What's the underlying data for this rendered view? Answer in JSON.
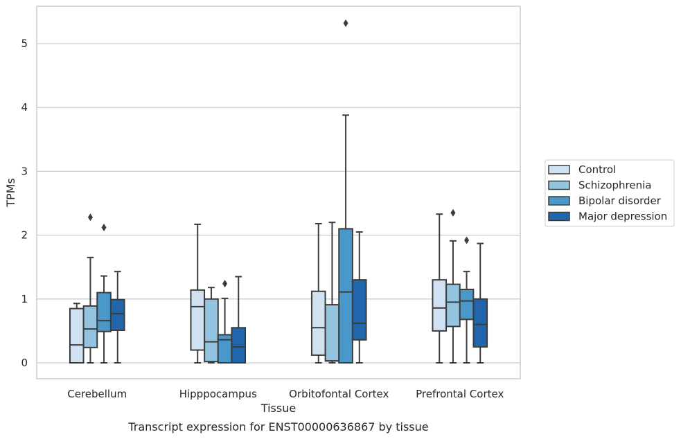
{
  "chart_data": {
    "type": "boxplot",
    "caption": "Transcript expression for ENST00000636867 by tissue",
    "xlabel": "Tissue",
    "ylabel": "TPMs",
    "ylim": [
      -0.26,
      5.83
    ],
    "yticks": [
      0,
      1,
      2,
      3,
      4,
      5
    ],
    "grid": true,
    "legend_position": "right",
    "categories": [
      "Cerebellum",
      "Hipppocampus",
      "Orbitofontal Cortex",
      "Prefrontal Cortex"
    ],
    "series": [
      {
        "name": "Control",
        "color": "#d0e1f2",
        "boxes": [
          {
            "whislo": 0.0,
            "q1": 0.0,
            "med": 0.28,
            "q3": 0.85,
            "whishi": 0.93,
            "fliers": []
          },
          {
            "whislo": 0.0,
            "q1": 0.2,
            "med": 0.88,
            "q3": 1.14,
            "whishi": 2.17,
            "fliers": []
          },
          {
            "whislo": 0.0,
            "q1": 0.12,
            "med": 0.55,
            "q3": 1.12,
            "whishi": 2.18,
            "fliers": []
          },
          {
            "whislo": 0.0,
            "q1": 0.5,
            "med": 0.86,
            "q3": 1.3,
            "whishi": 2.33,
            "fliers": []
          }
        ]
      },
      {
        "name": "Schizophrenia",
        "color": "#94c4df",
        "boxes": [
          {
            "whislo": 0.0,
            "q1": 0.24,
            "med": 0.53,
            "q3": 0.89,
            "whishi": 1.65,
            "fliers": [
              2.28
            ]
          },
          {
            "whislo": 0.0,
            "q1": 0.02,
            "med": 0.33,
            "q3": 1.0,
            "whishi": 1.18,
            "fliers": []
          },
          {
            "whislo": 0.0,
            "q1": 0.03,
            "med": 0.03,
            "q3": 0.91,
            "whishi": 2.2,
            "fliers": []
          },
          {
            "whislo": 0.0,
            "q1": 0.57,
            "med": 0.95,
            "q3": 1.23,
            "whishi": 1.91,
            "fliers": [
              2.35
            ]
          }
        ]
      },
      {
        "name": "Bipolar disorder",
        "color": "#4a98c9",
        "boxes": [
          {
            "whislo": 0.0,
            "q1": 0.49,
            "med": 0.66,
            "q3": 1.1,
            "whishi": 1.36,
            "fliers": [
              2.12
            ]
          },
          {
            "whislo": 0.0,
            "q1": 0.0,
            "med": 0.36,
            "q3": 0.44,
            "whishi": 1.01,
            "fliers": [
              1.24
            ]
          },
          {
            "whislo": 0.0,
            "q1": 0.0,
            "med": 1.11,
            "q3": 2.1,
            "whishi": 3.88,
            "fliers": [
              5.32
            ]
          },
          {
            "whislo": 0.0,
            "q1": 0.68,
            "med": 0.97,
            "q3": 1.15,
            "whishi": 1.43,
            "fliers": [
              1.92
            ]
          }
        ]
      },
      {
        "name": "Major depression",
        "color": "#2166ac",
        "boxes": [
          {
            "whislo": 0.0,
            "q1": 0.51,
            "med": 0.77,
            "q3": 0.99,
            "whishi": 1.43,
            "fliers": []
          },
          {
            "whislo": 0.0,
            "q1": 0.0,
            "med": 0.25,
            "q3": 0.55,
            "whishi": 1.35,
            "fliers": []
          },
          {
            "whislo": 0.0,
            "q1": 0.36,
            "med": 0.62,
            "q3": 1.3,
            "whishi": 2.05,
            "fliers": []
          },
          {
            "whislo": 0.0,
            "q1": 0.25,
            "med": 0.6,
            "q3": 1.0,
            "whishi": 1.87,
            "fliers": []
          }
        ]
      }
    ]
  }
}
